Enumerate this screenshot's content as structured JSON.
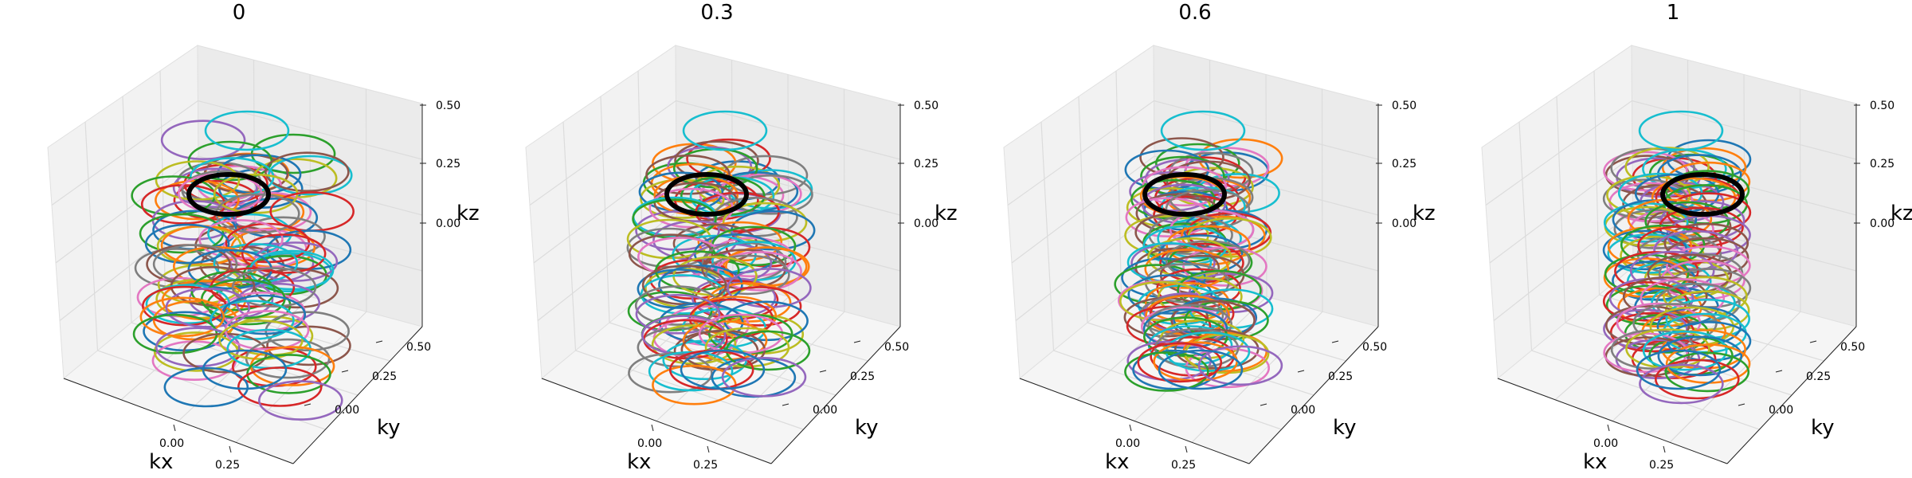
{
  "chart_data": [
    {
      "type": "line3d",
      "title": "0",
      "xlabel": "kx",
      "ylabel": "ky",
      "zlabel": "kz",
      "xticks": [
        "0.00",
        "0.25"
      ],
      "yticks": [
        "0.00",
        "0.25",
        "0.50"
      ],
      "zticks": [
        "0.00",
        "0.25",
        "0.50"
      ],
      "xlim": [
        -0.5,
        0.5
      ],
      "ylim": [
        -0.5,
        0.5
      ],
      "zlim": [
        -0.5,
        0.5
      ],
      "highlight_ring": {
        "center": [
          0,
          0,
          0.1
        ],
        "radius": 0.18,
        "color": "#000000"
      },
      "spread": 1.0,
      "grid": true
    },
    {
      "type": "line3d",
      "title": "0.3",
      "xlabel": "kx",
      "ylabel": "ky",
      "zlabel": "kz",
      "xticks": [
        "0.00",
        "0.25"
      ],
      "yticks": [
        "0.00",
        "0.25",
        "0.50"
      ],
      "zticks": [
        "0.00",
        "0.25",
        "0.50"
      ],
      "xlim": [
        -0.5,
        0.5
      ],
      "ylim": [
        -0.5,
        0.5
      ],
      "zlim": [
        -0.5,
        0.5
      ],
      "highlight_ring": {
        "center": [
          0,
          0,
          0.1
        ],
        "radius": 0.18,
        "color": "#000000"
      },
      "spread": 0.75,
      "grid": true
    },
    {
      "type": "line3d",
      "title": "0.6",
      "xlabel": "kx",
      "ylabel": "ky",
      "zlabel": "kz",
      "xticks": [
        "0.00",
        "0.25"
      ],
      "yticks": [
        "0.00",
        "0.25",
        "0.50"
      ],
      "zticks": [
        "0.00",
        "0.25",
        "0.50"
      ],
      "xlim": [
        -0.5,
        0.5
      ],
      "ylim": [
        -0.5,
        0.5
      ],
      "zlim": [
        -0.5,
        0.5
      ],
      "highlight_ring": {
        "center": [
          0,
          0,
          0.1
        ],
        "radius": 0.18,
        "color": "#000000"
      },
      "spread": 0.45,
      "grid": true
    },
    {
      "type": "line3d",
      "title": "1",
      "xlabel": "kx",
      "ylabel": "ky",
      "zlabel": "kz",
      "xticks": [
        "0.00",
        "0.25"
      ],
      "yticks": [
        "0.00",
        "0.25",
        "0.50"
      ],
      "zticks": [
        "0.00",
        "0.25",
        "0.50"
      ],
      "xlim": [
        -0.5,
        0.5
      ],
      "ylim": [
        -0.5,
        0.5
      ],
      "zlim": [
        -0.5,
        0.5
      ],
      "highlight_ring": {
        "center": [
          0,
          0,
          0.1
        ],
        "radius": 0.18,
        "color": "#000000"
      },
      "spread": 0.0,
      "grid": true
    }
  ],
  "palette": [
    "#1f77b4",
    "#ff7f0e",
    "#2ca02c",
    "#d62728",
    "#9467bd",
    "#8c564b",
    "#e377c2",
    "#7f7f7f",
    "#bcbd22",
    "#17becf"
  ]
}
